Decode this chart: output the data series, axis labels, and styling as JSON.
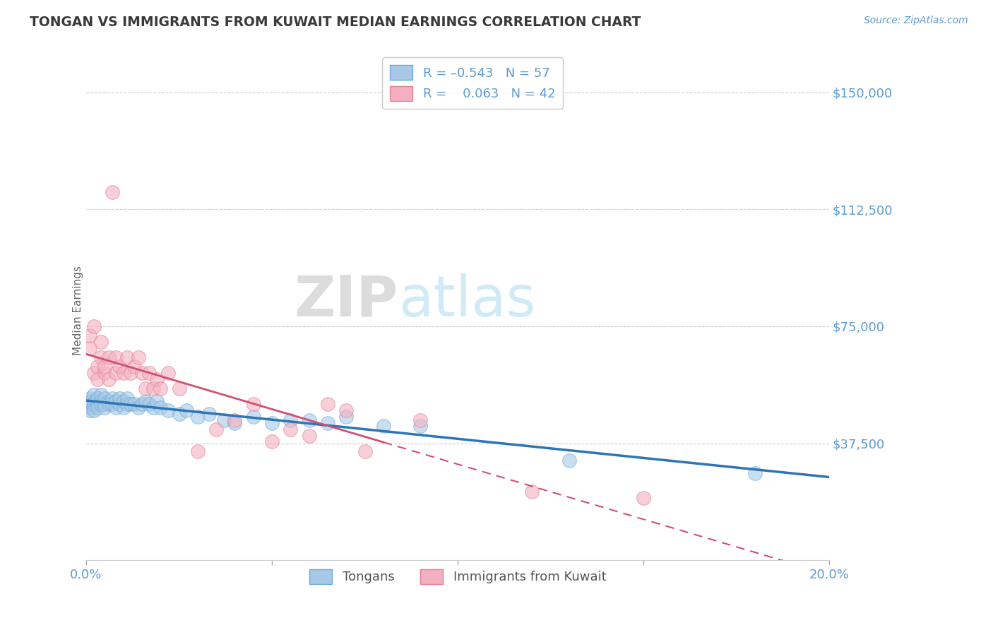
{
  "title": "TONGAN VS IMMIGRANTS FROM KUWAIT MEDIAN EARNINGS CORRELATION CHART",
  "source": "Source: ZipAtlas.com",
  "ylabel": "Median Earnings",
  "xlim": [
    0.0,
    0.2
  ],
  "ylim": [
    0,
    160000
  ],
  "yticks": [
    0,
    37500,
    75000,
    112500,
    150000
  ],
  "ytick_labels": [
    "",
    "$37,500",
    "$75,000",
    "$112,500",
    "$150,000"
  ],
  "xtick_labels": [
    "0.0%",
    "",
    "",
    "",
    "20.0%"
  ],
  "legend_label1": "Tongans",
  "legend_label2": "Immigrants from Kuwait",
  "watermark_zip": "ZIP",
  "watermark_atlas": "atlas",
  "title_color": "#3a3a3a",
  "axis_color": "#5b9bd5",
  "scatter_color_tongans": "#a8c8e8",
  "scatter_edge_tongans": "#6aaad4",
  "scatter_color_kuwait": "#f4b0c0",
  "scatter_edge_kuwait": "#e08090",
  "trend_color_tongans": "#2e75b6",
  "trend_color_kuwait": "#d05070",
  "grid_color": "#c8c8c8",
  "tongans_x": [
    0.0005,
    0.0008,
    0.001,
    0.001,
    0.0012,
    0.0015,
    0.002,
    0.002,
    0.002,
    0.0025,
    0.003,
    0.003,
    0.003,
    0.004,
    0.004,
    0.004,
    0.005,
    0.005,
    0.005,
    0.006,
    0.006,
    0.007,
    0.007,
    0.008,
    0.008,
    0.009,
    0.009,
    0.01,
    0.01,
    0.011,
    0.011,
    0.012,
    0.013,
    0.014,
    0.015,
    0.016,
    0.017,
    0.018,
    0.019,
    0.02,
    0.022,
    0.025,
    0.027,
    0.03,
    0.033,
    0.037,
    0.04,
    0.045,
    0.05,
    0.055,
    0.06,
    0.065,
    0.07,
    0.08,
    0.09,
    0.13,
    0.18
  ],
  "tongans_y": [
    50000,
    49000,
    52000,
    48000,
    51000,
    50000,
    53000,
    50000,
    48000,
    51000,
    50000,
    52000,
    49000,
    51000,
    50000,
    53000,
    50000,
    52000,
    49000,
    51000,
    50000,
    50000,
    52000,
    51000,
    49000,
    50000,
    52000,
    49000,
    51000,
    50000,
    52000,
    50000,
    50000,
    49000,
    50000,
    51000,
    50000,
    49000,
    51000,
    49000,
    48000,
    47000,
    48000,
    46000,
    47000,
    45000,
    44000,
    46000,
    44000,
    45000,
    45000,
    44000,
    46000,
    43000,
    43000,
    32000,
    28000
  ],
  "kuwait_x": [
    0.001,
    0.001,
    0.002,
    0.002,
    0.003,
    0.003,
    0.004,
    0.004,
    0.005,
    0.005,
    0.006,
    0.006,
    0.007,
    0.008,
    0.008,
    0.009,
    0.01,
    0.011,
    0.012,
    0.013,
    0.014,
    0.015,
    0.016,
    0.017,
    0.018,
    0.019,
    0.02,
    0.022,
    0.025,
    0.03,
    0.035,
    0.04,
    0.045,
    0.05,
    0.055,
    0.06,
    0.065,
    0.07,
    0.075,
    0.09,
    0.12,
    0.15
  ],
  "kuwait_y": [
    68000,
    72000,
    60000,
    75000,
    62000,
    58000,
    65000,
    70000,
    60000,
    62000,
    58000,
    65000,
    118000,
    60000,
    65000,
    62000,
    60000,
    65000,
    60000,
    62000,
    65000,
    60000,
    55000,
    60000,
    55000,
    58000,
    55000,
    60000,
    55000,
    35000,
    42000,
    45000,
    50000,
    38000,
    42000,
    40000,
    50000,
    48000,
    35000,
    45000,
    22000,
    20000
  ]
}
